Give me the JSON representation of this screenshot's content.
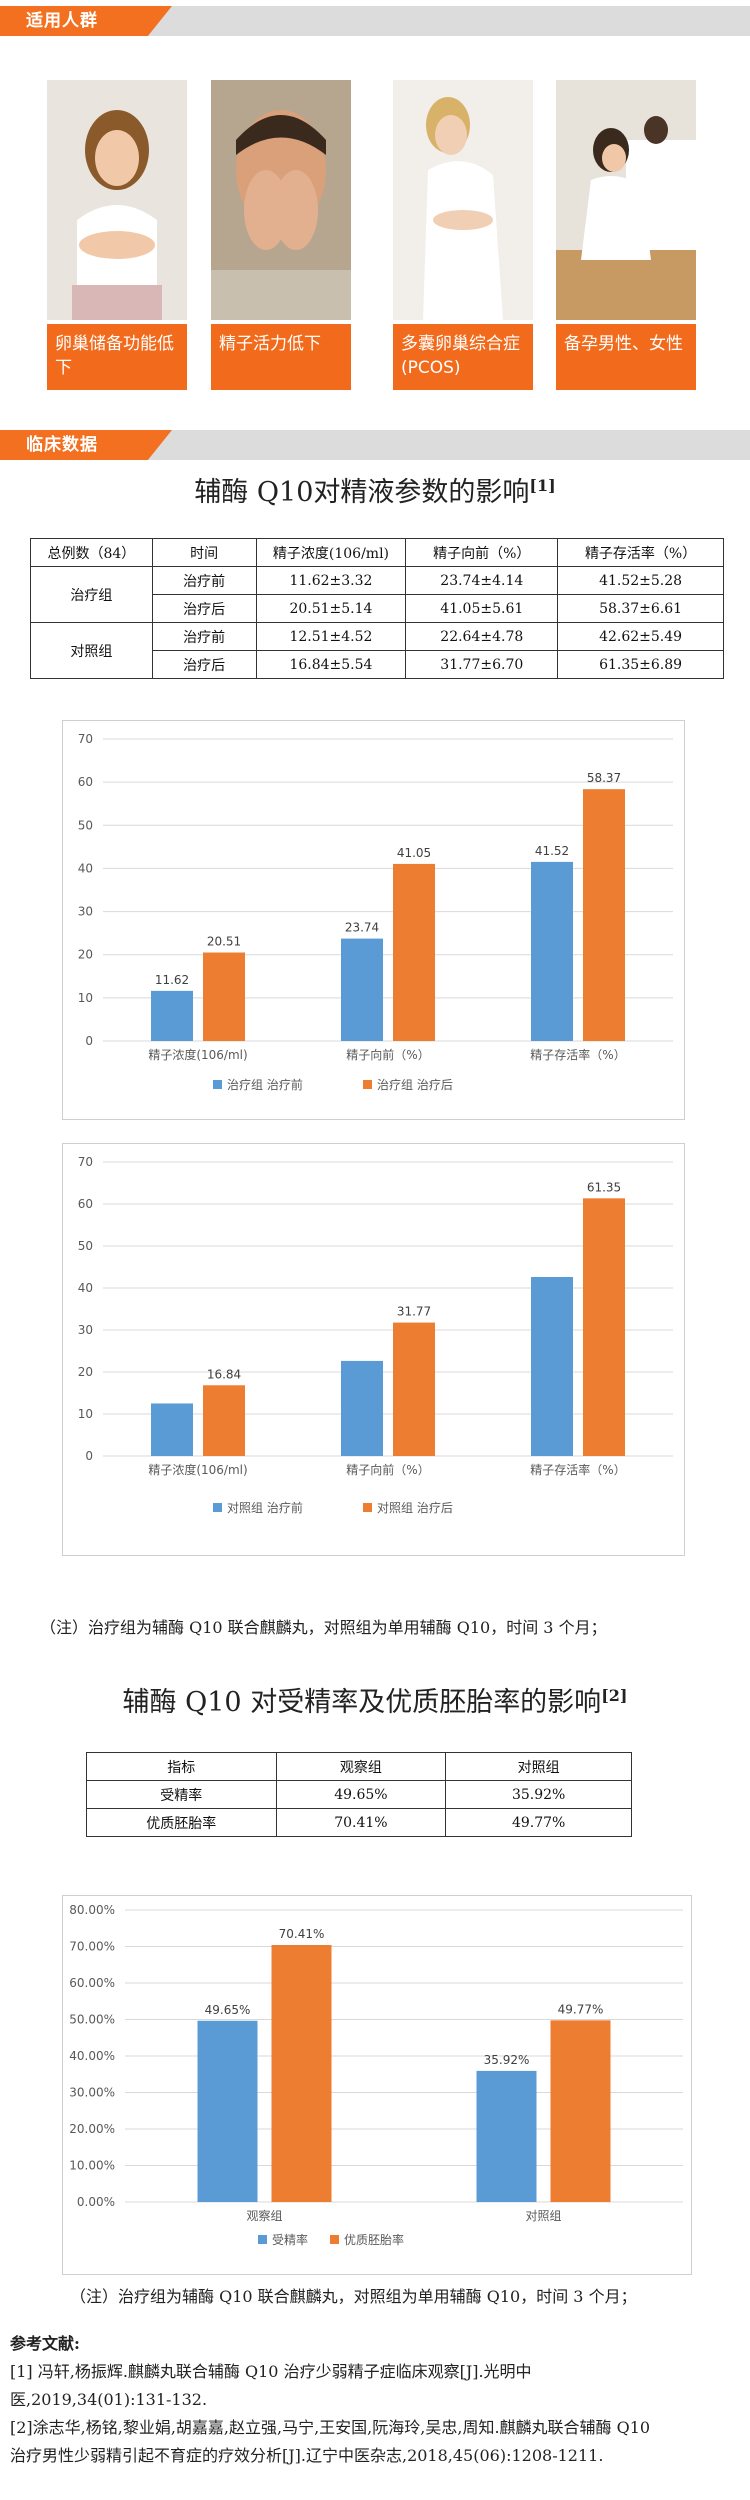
{
  "sections": {
    "suitable": "适用人群",
    "clinical": "临床数据"
  },
  "groups": [
    {
      "caption": "卵巢储备功能低下"
    },
    {
      "caption": "精子活力低下"
    },
    {
      "caption": "多囊卵巢综合症(PCOS)"
    },
    {
      "caption": "备孕男性、女性"
    }
  ],
  "table1": {
    "title": "辅酶 Q10对精液参数的影响",
    "ref": "[1]",
    "header": [
      "总例数（84）",
      "时间",
      "精子浓度(106/ml)",
      "精子向前（%）",
      "精子存活率（%）"
    ],
    "treat_group": "治疗组",
    "control_group": "对照组",
    "rows": [
      [
        "治疗前",
        "11.62±3.32",
        "23.74±4.14",
        "41.52±5.28"
      ],
      [
        "治疗后",
        "20.51±5.14",
        "41.05±5.61",
        "58.37±6.61"
      ],
      [
        "治疗前",
        "12.51±4.52",
        "22.64±4.78",
        "42.62±5.49"
      ],
      [
        "治疗后",
        "16.84±5.54",
        "31.77±6.70",
        "61.35±6.89"
      ]
    ]
  },
  "chart_data": [
    {
      "type": "bar",
      "categories": [
        "精子浓度(106/ml)",
        "精子向前（%）",
        "精子存活率（%）"
      ],
      "series": [
        {
          "name": "治疗组 治疗前",
          "values": [
            11.62,
            23.74,
            41.52
          ],
          "color": "#5b9bd5"
        },
        {
          "name": "治疗组 治疗后",
          "values": [
            20.51,
            41.05,
            58.37
          ],
          "color": "#ed7d31"
        }
      ],
      "ylim": [
        0,
        70
      ],
      "yticks": [
        "0",
        "10",
        "20",
        "30",
        "40",
        "50",
        "60",
        "70"
      ],
      "labels": [
        [
          "11.62",
          "23.74",
          "41.52"
        ],
        [
          "20.51",
          "41.05",
          "58.37"
        ]
      ],
      "legend": "bottom"
    },
    {
      "type": "bar",
      "categories": [
        "精子浓度(106/ml)",
        "精子向前（%）",
        "精子存活率（%）"
      ],
      "series": [
        {
          "name": "对照组 治疗前",
          "values": [
            12.51,
            22.64,
            42.62
          ],
          "color": "#5b9bd5"
        },
        {
          "name": "对照组 治疗后",
          "values": [
            16.84,
            31.77,
            61.35
          ],
          "color": "#ed7d31"
        }
      ],
      "ylim": [
        0,
        70
      ],
      "yticks": [
        "0",
        "10",
        "20",
        "30",
        "40",
        "50",
        "60",
        "70"
      ],
      "labels": [
        [
          "",
          "",
          ""
        ],
        [
          "16.84",
          "31.77",
          "61.35"
        ]
      ],
      "legend": "bottom"
    },
    {
      "type": "bar",
      "categories": [
        "观察组",
        "对照组"
      ],
      "series": [
        {
          "name": "受精率",
          "values": [
            49.65,
            35.92
          ],
          "color": "#5b9bd5"
        },
        {
          "name": "优质胚胎率",
          "values": [
            70.41,
            49.77
          ],
          "color": "#ed7d31"
        }
      ],
      "ylim": [
        0,
        80
      ],
      "yticks": [
        "0.00%",
        "10.00%",
        "20.00%",
        "30.00%",
        "40.00%",
        "50.00%",
        "60.00%",
        "70.00%",
        "80.00%"
      ],
      "labels": [
        [
          "49.65%",
          "35.92%"
        ],
        [
          "70.41%",
          "49.77%"
        ]
      ],
      "legend": "bottom"
    }
  ],
  "note1": "（注）治疗组为辅酶 Q10 联合麒麟丸，对照组为单用辅酶 Q10，时间 3 个月；",
  "table2": {
    "title": "辅酶 Q10 对受精率及优质胚胎率的影响",
    "ref": "[2]",
    "header": [
      "指标",
      "观察组",
      "对照组"
    ],
    "rows": [
      [
        "受精率",
        "49.65%",
        "35.92%"
      ],
      [
        "优质胚胎率",
        "70.41%",
        "49.77%"
      ]
    ]
  },
  "note2": "（注）治疗组为辅酶 Q10 联合麒麟丸，对照组为单用辅酶 Q10，时间 3 个月；",
  "refs": {
    "heading": "参考文献:",
    "r1a": "[1] 冯轩,杨振辉.麒麟丸联合辅酶 Q10 治疗少弱精子症临床观察[J].光明中",
    "r1b": "医,2019,34(01):131-132.",
    "r2a": "[2]涂志华,杨铭,黎业娟,胡嘉嘉,赵立强,马宁,王安国,阮海玲,吴忠,周知.麒麟丸联合辅酶 Q10",
    "r2b": "治疗男性少弱精引起不育症的疗效分析[J].辽宁中医杂志,2018,45(06):1208-1211."
  }
}
